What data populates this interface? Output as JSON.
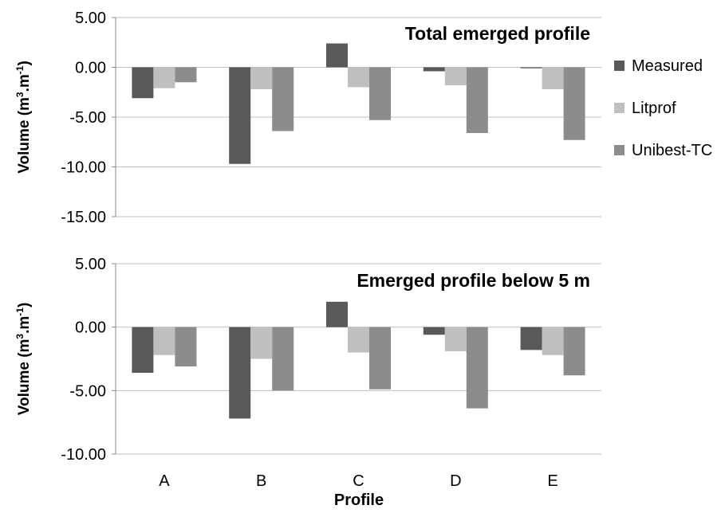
{
  "chart_data": [
    {
      "type": "bar",
      "title": "Total emerged profile",
      "ylabel": "Volume (m3.m-1)",
      "ylim": [
        -15,
        5
      ],
      "yticks": [
        "5.00",
        "0.00",
        "-5.00",
        "-10.00",
        "-15.00"
      ],
      "yticks_values": [
        5,
        0,
        -5,
        -10,
        -15
      ],
      "categories": [
        "A",
        "B",
        "C",
        "D",
        "E"
      ],
      "series": [
        {
          "name": "Measured",
          "values": [
            -3.1,
            -9.7,
            2.4,
            -0.4,
            -0.1
          ],
          "color": "#595959"
        },
        {
          "name": "Litprof",
          "values": [
            -2.1,
            -2.2,
            -2.0,
            -1.8,
            -2.2
          ],
          "color": "#bfbfbf"
        },
        {
          "name": "Unibest-TC",
          "values": [
            -1.5,
            -6.4,
            -5.3,
            -6.6,
            -7.3
          ],
          "color": "#8c8c8c"
        }
      ],
      "grid": true,
      "legend": "right"
    },
    {
      "type": "bar",
      "title": "Emerged profile below 5 m",
      "ylabel": "Volume (m3.m-1)",
      "xlabel": "Profile",
      "ylim": [
        -10,
        5
      ],
      "yticks": [
        "5.00",
        "0.00",
        "-5.00",
        "-10.00"
      ],
      "yticks_values": [
        5,
        0,
        -5,
        -10
      ],
      "categories": [
        "A",
        "B",
        "C",
        "D",
        "E"
      ],
      "series": [
        {
          "name": "Measured",
          "values": [
            -3.6,
            -7.2,
            2.0,
            -0.6,
            -1.8
          ],
          "color": "#595959"
        },
        {
          "name": "Litprof",
          "values": [
            -2.2,
            -2.5,
            -2.0,
            -1.9,
            -2.2
          ],
          "color": "#bfbfbf"
        },
        {
          "name": "Unibest-TC",
          "values": [
            -3.1,
            -5.0,
            -4.9,
            -6.4,
            -3.8
          ],
          "color": "#8c8c8c"
        }
      ],
      "grid": true
    }
  ],
  "legend_items": [
    "Measured",
    "Litprof",
    "Unibest-TC"
  ],
  "ylabel_parts": {
    "main": "Volume (m",
    "sup1": "3",
    "mid": ".m",
    "sup2": "-1",
    "end": ")"
  },
  "grid_color": "#bfbfbf",
  "axis_color": "#888888"
}
